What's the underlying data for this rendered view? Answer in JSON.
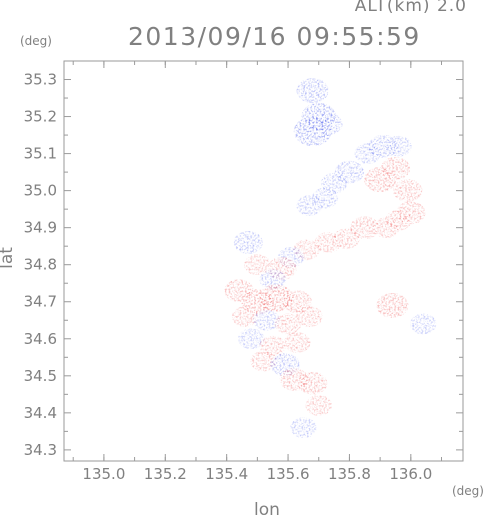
{
  "header": {
    "altitude_label": "ALT(km) 2.0",
    "timestamp": "2013/09/16 09:55:59"
  },
  "chart_data": {
    "type": "heatmap",
    "title": "2013/09/16 09:55:59",
    "subtitle": "ALT(km) 2.0",
    "xlabel": "lon",
    "ylabel": "lat",
    "x_unit": "(deg)",
    "y_unit": "(deg)",
    "xlim": [
      134.87,
      136.17
    ],
    "ylim": [
      34.27,
      35.35
    ],
    "xticks": [
      135.0,
      135.2,
      135.4,
      135.6,
      135.8,
      136.0
    ],
    "xtick_labels": [
      "135.0",
      "135.2",
      "135.4",
      "135.6",
      "135.8",
      "136.0"
    ],
    "yticks": [
      34.3,
      34.4,
      34.5,
      34.6,
      34.7,
      34.8,
      34.9,
      35.0,
      35.1,
      35.2,
      35.3
    ],
    "ytick_labels": [
      "34.3",
      "34.4",
      "34.5",
      "34.6",
      "34.7",
      "34.8",
      "34.9",
      "35.0",
      "35.1",
      "35.2",
      "35.3"
    ],
    "grid": false,
    "colors": {
      "positive": "#ee5555",
      "negative": "#5566ee",
      "axis": "#9a9a9a",
      "text": "#808080"
    },
    "echo_regions": [
      {
        "lon": 135.68,
        "lat": 35.27,
        "value": -0.5
      },
      {
        "lon": 135.7,
        "lat": 35.2,
        "value": -0.6
      },
      {
        "lon": 135.68,
        "lat": 35.16,
        "value": -0.7
      },
      {
        "lon": 135.73,
        "lat": 35.18,
        "value": -0.4
      },
      {
        "lon": 135.91,
        "lat": 35.12,
        "value": -0.4
      },
      {
        "lon": 135.96,
        "lat": 35.12,
        "value": -0.3
      },
      {
        "lon": 135.86,
        "lat": 35.1,
        "value": -0.3
      },
      {
        "lon": 135.95,
        "lat": 35.06,
        "value": 0.4
      },
      {
        "lon": 135.9,
        "lat": 35.03,
        "value": 0.5
      },
      {
        "lon": 135.99,
        "lat": 35.0,
        "value": 0.4
      },
      {
        "lon": 135.8,
        "lat": 35.05,
        "value": -0.4
      },
      {
        "lon": 135.75,
        "lat": 35.02,
        "value": -0.3
      },
      {
        "lon": 135.72,
        "lat": 34.98,
        "value": -0.3
      },
      {
        "lon": 135.67,
        "lat": 34.96,
        "value": -0.3
      },
      {
        "lon": 135.96,
        "lat": 34.92,
        "value": 0.3
      },
      {
        "lon": 136.0,
        "lat": 34.94,
        "value": 0.4
      },
      {
        "lon": 135.92,
        "lat": 34.9,
        "value": 0.3
      },
      {
        "lon": 135.85,
        "lat": 34.9,
        "value": 0.4
      },
      {
        "lon": 135.79,
        "lat": 34.87,
        "value": 0.3
      },
      {
        "lon": 135.73,
        "lat": 34.86,
        "value": 0.3
      },
      {
        "lon": 135.66,
        "lat": 34.84,
        "value": 0.3
      },
      {
        "lon": 135.61,
        "lat": 34.82,
        "value": -0.3
      },
      {
        "lon": 135.58,
        "lat": 34.79,
        "value": 0.4
      },
      {
        "lon": 135.55,
        "lat": 34.76,
        "value": -0.3
      },
      {
        "lon": 135.5,
        "lat": 34.8,
        "value": 0.3
      },
      {
        "lon": 135.47,
        "lat": 34.86,
        "value": -0.4
      },
      {
        "lon": 135.44,
        "lat": 34.73,
        "value": 0.4
      },
      {
        "lon": 135.5,
        "lat": 34.7,
        "value": 0.5
      },
      {
        "lon": 135.56,
        "lat": 34.71,
        "value": 0.6
      },
      {
        "lon": 135.63,
        "lat": 34.7,
        "value": 0.4
      },
      {
        "lon": 135.46,
        "lat": 34.66,
        "value": 0.3
      },
      {
        "lon": 135.53,
        "lat": 34.65,
        "value": -0.3
      },
      {
        "lon": 135.6,
        "lat": 34.64,
        "value": 0.3
      },
      {
        "lon": 135.67,
        "lat": 34.66,
        "value": 0.3
      },
      {
        "lon": 135.48,
        "lat": 34.6,
        "value": -0.3
      },
      {
        "lon": 135.55,
        "lat": 34.58,
        "value": 0.3
      },
      {
        "lon": 135.63,
        "lat": 34.59,
        "value": 0.3
      },
      {
        "lon": 135.52,
        "lat": 34.54,
        "value": 0.3
      },
      {
        "lon": 135.59,
        "lat": 34.53,
        "value": -0.4
      },
      {
        "lon": 135.62,
        "lat": 34.49,
        "value": 0.4
      },
      {
        "lon": 135.68,
        "lat": 34.48,
        "value": 0.4
      },
      {
        "lon": 135.7,
        "lat": 34.42,
        "value": 0.3
      },
      {
        "lon": 135.94,
        "lat": 34.69,
        "value": 0.5
      },
      {
        "lon": 136.04,
        "lat": 34.64,
        "value": -0.3
      },
      {
        "lon": 135.65,
        "lat": 34.36,
        "value": -0.3
      }
    ]
  }
}
